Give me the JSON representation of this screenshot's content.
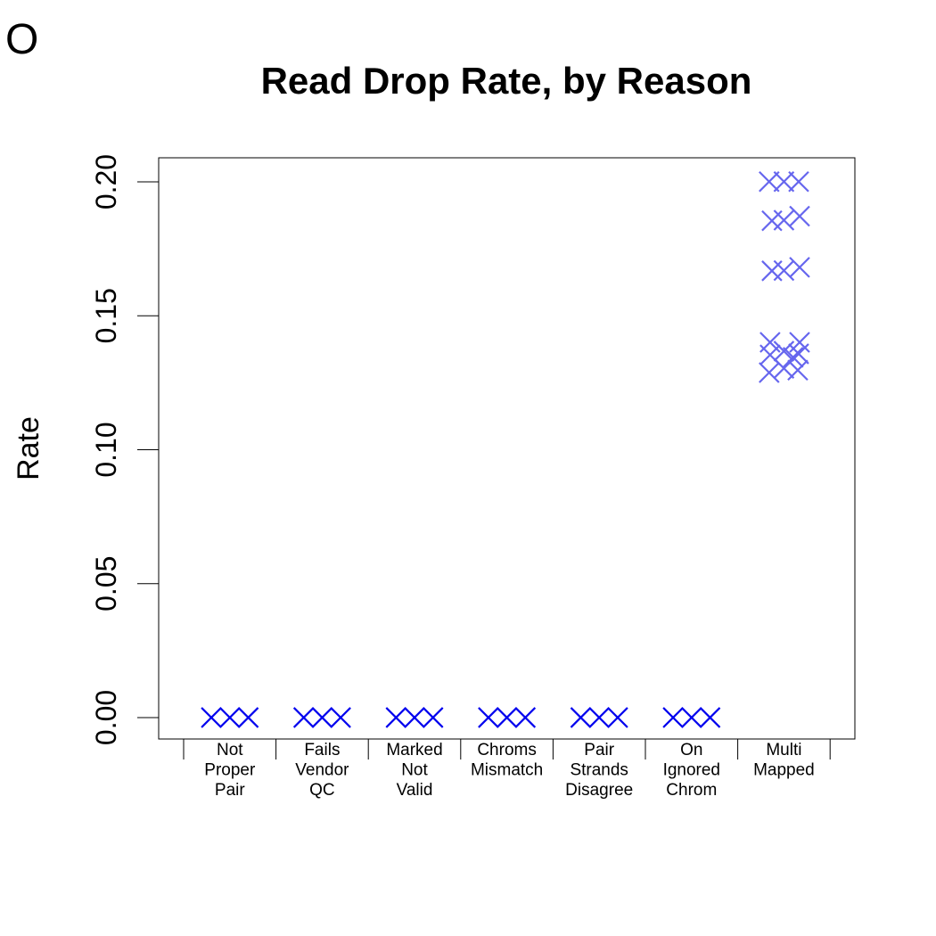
{
  "panel_label": "O",
  "chart_data": {
    "type": "scatter",
    "title": "Read Drop Rate, by Reason",
    "xlabel": "",
    "ylabel": "Rate",
    "ylim": [
      -0.008,
      0.209
    ],
    "yticks": [
      0.0,
      0.05,
      0.1,
      0.15,
      0.2
    ],
    "ytick_labels": [
      "0.00",
      "0.05",
      "0.10",
      "0.15",
      "0.20"
    ],
    "grid": false,
    "legend": "none",
    "marker": "x",
    "categories": [
      [
        "Not",
        "Proper",
        "Pair"
      ],
      [
        "Fails",
        "Vendor",
        "QC"
      ],
      [
        "Marked",
        "Not",
        "Valid"
      ],
      [
        "Chroms",
        "Mismatch"
      ],
      [
        "Pair",
        "Strands",
        "Disagree"
      ],
      [
        "On",
        "Ignored",
        "Chrom"
      ],
      [
        "Multi",
        "Mapped"
      ]
    ],
    "points": [
      {
        "cat": 0,
        "offset": -0.2,
        "y": 0.0,
        "color": "#0000ee"
      },
      {
        "cat": 0,
        "offset": 0.0,
        "y": 0.0,
        "color": "#0000ee"
      },
      {
        "cat": 0,
        "offset": 0.2,
        "y": 0.0,
        "color": "#0000ee"
      },
      {
        "cat": 1,
        "offset": -0.2,
        "y": 0.0,
        "color": "#0000ee"
      },
      {
        "cat": 1,
        "offset": 0.0,
        "y": 0.0,
        "color": "#0000ee"
      },
      {
        "cat": 1,
        "offset": 0.2,
        "y": 0.0,
        "color": "#0000ee"
      },
      {
        "cat": 2,
        "offset": -0.2,
        "y": 0.0,
        "color": "#0000ee"
      },
      {
        "cat": 2,
        "offset": 0.0,
        "y": 0.0,
        "color": "#0000ee"
      },
      {
        "cat": 2,
        "offset": 0.2,
        "y": 0.0,
        "color": "#0000ee"
      },
      {
        "cat": 3,
        "offset": -0.2,
        "y": 0.0,
        "color": "#0000ee"
      },
      {
        "cat": 3,
        "offset": 0.0,
        "y": 0.0,
        "color": "#0000ee"
      },
      {
        "cat": 3,
        "offset": 0.2,
        "y": 0.0,
        "color": "#0000ee"
      },
      {
        "cat": 4,
        "offset": -0.2,
        "y": 0.0,
        "color": "#0000ee"
      },
      {
        "cat": 4,
        "offset": 0.0,
        "y": 0.0,
        "color": "#0000ee"
      },
      {
        "cat": 4,
        "offset": 0.2,
        "y": 0.0,
        "color": "#0000ee"
      },
      {
        "cat": 5,
        "offset": -0.2,
        "y": 0.0,
        "color": "#0000ee"
      },
      {
        "cat": 5,
        "offset": 0.0,
        "y": 0.0,
        "color": "#0000ee"
      },
      {
        "cat": 5,
        "offset": 0.2,
        "y": 0.0,
        "color": "#0000ee"
      },
      {
        "cat": 6,
        "offset": -0.16,
        "y": 0.2001,
        "color": "#6666ee"
      },
      {
        "cat": 6,
        "offset": 0.0,
        "y": 0.2001,
        "color": "#6666ee"
      },
      {
        "cat": 6,
        "offset": 0.16,
        "y": 0.2001,
        "color": "#6666ee"
      },
      {
        "cat": 6,
        "offset": -0.13,
        "y": 0.1855,
        "color": "#6666ee"
      },
      {
        "cat": 6,
        "offset": 0.0,
        "y": 0.1857,
        "color": "#6666ee"
      },
      {
        "cat": 6,
        "offset": 0.17,
        "y": 0.1872,
        "color": "#6666ee"
      },
      {
        "cat": 6,
        "offset": -0.13,
        "y": 0.1668,
        "color": "#6666ee"
      },
      {
        "cat": 6,
        "offset": 0.0,
        "y": 0.1669,
        "color": "#6666ee"
      },
      {
        "cat": 6,
        "offset": 0.17,
        "y": 0.1681,
        "color": "#6666ee"
      },
      {
        "cat": 6,
        "offset": -0.15,
        "y": 0.1401,
        "color": "#6666ee"
      },
      {
        "cat": 6,
        "offset": 0.0,
        "y": 0.1368,
        "color": "#6666ee"
      },
      {
        "cat": 6,
        "offset": 0.17,
        "y": 0.1401,
        "color": "#6666ee"
      },
      {
        "cat": 6,
        "offset": -0.15,
        "y": 0.1354,
        "color": "#6666ee"
      },
      {
        "cat": 6,
        "offset": 0.1,
        "y": 0.1345,
        "color": "#6666ee"
      },
      {
        "cat": 6,
        "offset": 0.16,
        "y": 0.1358,
        "color": "#6666ee"
      },
      {
        "cat": 6,
        "offset": -0.16,
        "y": 0.1288,
        "color": "#6666ee"
      },
      {
        "cat": 6,
        "offset": 0.0,
        "y": 0.1304,
        "color": "#6666ee"
      },
      {
        "cat": 6,
        "offset": 0.15,
        "y": 0.1297,
        "color": "#6666ee"
      }
    ]
  }
}
